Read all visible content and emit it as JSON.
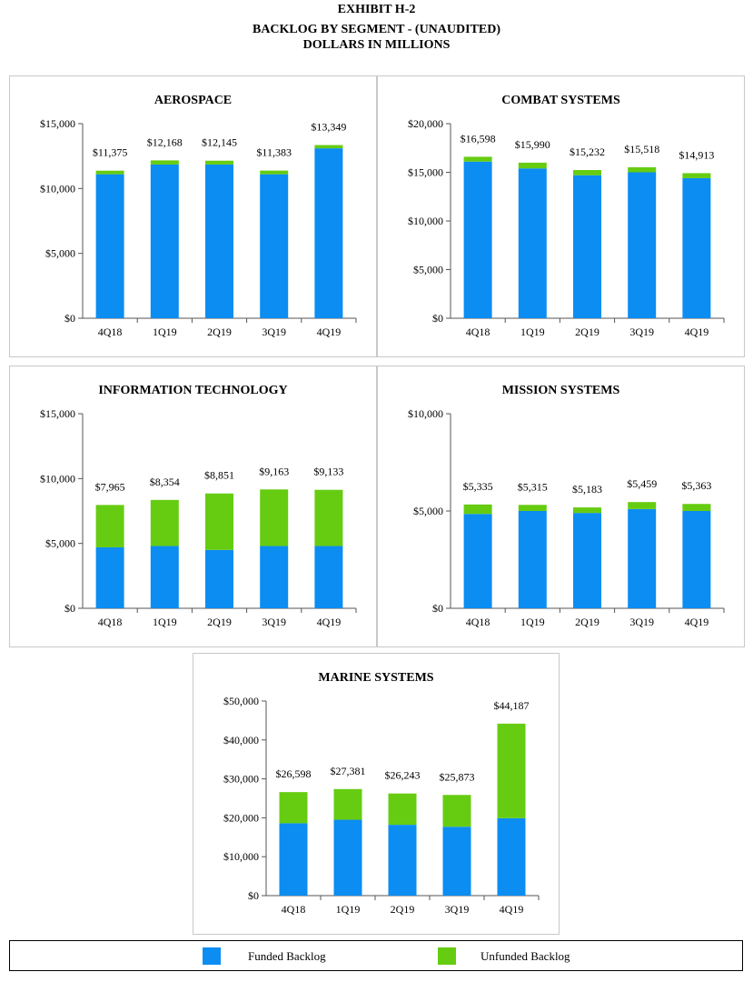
{
  "header": {
    "exhibit": "EXHIBIT H-2",
    "title_line1": "BACKLOG BY SEGMENT - (UNAUDITED)",
    "title_line2": "DOLLARS IN MILLIONS"
  },
  "colors": {
    "funded": "#0b8df2",
    "unfunded": "#66cc11",
    "axis": "#555555"
  },
  "legend": {
    "funded_label": "Funded Backlog",
    "unfunded_label": "Unfunded Backlog"
  },
  "chart_data": [
    {
      "type": "bar",
      "stacked": true,
      "title": "AEROSPACE",
      "categories": [
        "4Q18",
        "1Q19",
        "2Q19",
        "3Q19",
        "4Q19"
      ],
      "ylim": [
        0,
        15000
      ],
      "yticks": [
        0,
        5000,
        10000,
        15000
      ],
      "ytick_labels": [
        "$0",
        "$5,000",
        "$10,000",
        "$15,000"
      ],
      "series": [
        {
          "name": "Funded Backlog",
          "values": [
            11100,
            11850,
            11850,
            11100,
            13100
          ]
        },
        {
          "name": "Unfunded Backlog",
          "values": [
            275,
            318,
            295,
            283,
            249
          ]
        }
      ],
      "totals": [
        11375,
        12168,
        12145,
        11383,
        13349
      ],
      "total_labels": [
        "$11,375",
        "$12,168",
        "$12,145",
        "$11,383",
        "$13,349"
      ]
    },
    {
      "type": "bar",
      "stacked": true,
      "title": "COMBAT SYSTEMS",
      "categories": [
        "4Q18",
        "1Q19",
        "2Q19",
        "3Q19",
        "4Q19"
      ],
      "ylim": [
        0,
        20000
      ],
      "yticks": [
        0,
        5000,
        10000,
        15000,
        20000
      ],
      "ytick_labels": [
        "$0",
        "$5,000",
        "$10,000",
        "$15,000",
        "$20,000"
      ],
      "series": [
        {
          "name": "Funded Backlog",
          "values": [
            16100,
            15400,
            14700,
            15000,
            14400
          ]
        },
        {
          "name": "Unfunded Backlog",
          "values": [
            498,
            590,
            532,
            518,
            513
          ]
        }
      ],
      "totals": [
        16598,
        15990,
        15232,
        15518,
        14913
      ],
      "total_labels": [
        "$16,598",
        "$15,990",
        "$15,232",
        "$15,518",
        "$14,913"
      ]
    },
    {
      "type": "bar",
      "stacked": true,
      "title": "INFORMATION TECHNOLOGY",
      "categories": [
        "4Q18",
        "1Q19",
        "2Q19",
        "3Q19",
        "4Q19"
      ],
      "ylim": [
        0,
        15000
      ],
      "yticks": [
        0,
        5000,
        10000,
        15000
      ],
      "ytick_labels": [
        "$0",
        "$5,000",
        "$10,000",
        "$15,000"
      ],
      "series": [
        {
          "name": "Funded Backlog",
          "values": [
            4700,
            4800,
            4500,
            4800,
            4800
          ]
        },
        {
          "name": "Unfunded Backlog",
          "values": [
            3265,
            3554,
            4351,
            4363,
            4333
          ]
        }
      ],
      "totals": [
        7965,
        8354,
        8851,
        9163,
        9133
      ],
      "total_labels": [
        "$7,965",
        "$8,354",
        "$8,851",
        "$9,163",
        "$9,133"
      ]
    },
    {
      "type": "bar",
      "stacked": true,
      "title": "MISSION SYSTEMS",
      "categories": [
        "4Q18",
        "1Q19",
        "2Q19",
        "3Q19",
        "4Q19"
      ],
      "ylim": [
        0,
        10000
      ],
      "yticks": [
        0,
        5000,
        10000
      ],
      "ytick_labels": [
        "$0",
        "$5,000",
        "$10,000"
      ],
      "series": [
        {
          "name": "Funded Backlog",
          "values": [
            4850,
            5000,
            4900,
            5100,
            5000
          ]
        },
        {
          "name": "Unfunded Backlog",
          "values": [
            485,
            315,
            283,
            359,
            363
          ]
        }
      ],
      "totals": [
        5335,
        5315,
        5183,
        5459,
        5363
      ],
      "total_labels": [
        "$5,335",
        "$5,315",
        "$5,183",
        "$5,459",
        "$5,363"
      ]
    },
    {
      "type": "bar",
      "stacked": true,
      "title": "MARINE SYSTEMS",
      "categories": [
        "4Q18",
        "1Q19",
        "2Q19",
        "3Q19",
        "4Q19"
      ],
      "ylim": [
        0,
        50000
      ],
      "yticks": [
        0,
        10000,
        20000,
        30000,
        40000,
        50000
      ],
      "ytick_labels": [
        "$0",
        "$10,000",
        "$20,000",
        "$30,000",
        "$40,000",
        "$50,000"
      ],
      "series": [
        {
          "name": "Funded Backlog",
          "values": [
            18600,
            19500,
            18200,
            17700,
            19900
          ]
        },
        {
          "name": "Unfunded Backlog",
          "values": [
            7998,
            7881,
            8043,
            8173,
            24287
          ]
        }
      ],
      "totals": [
        26598,
        27381,
        26243,
        25873,
        44187
      ],
      "total_labels": [
        "$26,598",
        "$27,381",
        "$26,243",
        "$25,873",
        "$44,187"
      ]
    }
  ]
}
